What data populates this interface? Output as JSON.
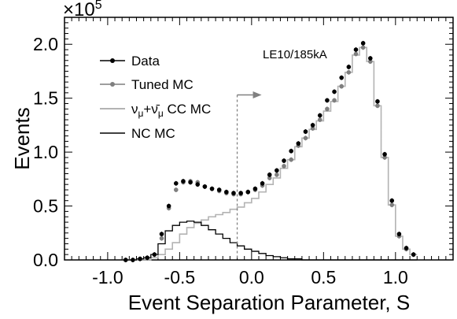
{
  "chart_data": {
    "type": "line",
    "title": "",
    "xlabel": "Event Separation Parameter, S",
    "ylabel": "Events",
    "xlim": [
      -1.3,
      1.4
    ],
    "ylim": [
      0,
      2.25
    ],
    "y_multiplier": {
      "base": "×10",
      "exp": "5"
    },
    "x_ticks": [
      "-1.0",
      "-0.5",
      "0.0",
      "0.5",
      "1.0"
    ],
    "x_tick_values": [
      -1.0,
      -0.5,
      0.0,
      0.5,
      1.0
    ],
    "y_ticks": [
      "0.0",
      "0.5",
      "1.0",
      "1.5",
      "2.0"
    ],
    "y_tick_values": [
      0.0,
      0.5,
      1.0,
      1.5,
      2.0
    ],
    "grid": false,
    "legend_position": "top-left",
    "annotations": [
      {
        "text": "LE10/185kA"
      }
    ],
    "cut": {
      "x": -0.1,
      "arrow_direction": "right"
    },
    "bins": {
      "start": -0.9,
      "width": 0.05
    },
    "series": [
      {
        "name": "Data",
        "style": "points",
        "color": "#000000",
        "values": [
          0.0,
          0.0,
          0.01,
          0.02,
          0.05,
          0.24,
          0.5,
          0.71,
          0.73,
          0.72,
          0.7,
          0.68,
          0.66,
          0.65,
          0.63,
          0.62,
          0.62,
          0.63,
          0.66,
          0.71,
          0.79,
          0.83,
          0.92,
          1.01,
          1.08,
          1.19,
          1.25,
          1.34,
          1.48,
          1.56,
          1.69,
          1.79,
          1.95,
          2.01,
          1.87,
          1.47,
          0.98,
          0.55,
          0.24,
          0.11,
          0.05
        ]
      },
      {
        "name": "Tuned MC",
        "style": "points",
        "color": "#7f7f7f",
        "values": [
          0.0,
          0.0,
          0.01,
          0.02,
          0.05,
          0.2,
          0.48,
          0.65,
          0.72,
          0.73,
          0.72,
          0.68,
          0.66,
          0.64,
          0.62,
          0.61,
          0.61,
          0.63,
          0.65,
          0.69,
          0.76,
          0.79,
          0.87,
          0.93,
          1.06,
          1.13,
          1.22,
          1.3,
          1.4,
          1.48,
          1.61,
          1.74,
          1.91,
          1.97,
          1.84,
          1.43,
          0.95,
          0.51,
          0.22,
          0.1,
          0.05
        ]
      },
      {
        "name": "νμ+ν̄μ CC MC",
        "label_parts": {
          "nu": "ν",
          "mu": "μ",
          "plus": "+",
          "nubar": "ν̄",
          "suffix": " CC MC"
        },
        "style": "step",
        "color": "#b3b3b3",
        "values": [
          0.0,
          0.0,
          0.0,
          0.0,
          0.02,
          0.05,
          0.1,
          0.16,
          0.24,
          0.3,
          0.34,
          0.37,
          0.4,
          0.42,
          0.44,
          0.47,
          0.49,
          0.53,
          0.57,
          0.63,
          0.7,
          0.76,
          0.85,
          0.93,
          1.05,
          1.13,
          1.21,
          1.29,
          1.38,
          1.47,
          1.61,
          1.74,
          1.9,
          1.97,
          1.84,
          1.43,
          0.95,
          0.51,
          0.22,
          0.1,
          0.05
        ]
      },
      {
        "name": "NC MC",
        "style": "step",
        "color": "#000000",
        "values": [
          0.0,
          0.0,
          0.01,
          0.02,
          0.05,
          0.15,
          0.27,
          0.32,
          0.35,
          0.36,
          0.35,
          0.32,
          0.28,
          0.24,
          0.2,
          0.16,
          0.13,
          0.1,
          0.08,
          0.06,
          0.04,
          0.03,
          0.02,
          0.01,
          0.01,
          0.0,
          0.0,
          0.0,
          0.0,
          0.0,
          0.0,
          0.0,
          0.0,
          0.0,
          0.0,
          0.0,
          0.0,
          0.0,
          0.0,
          0.0,
          0.0
        ]
      }
    ]
  }
}
